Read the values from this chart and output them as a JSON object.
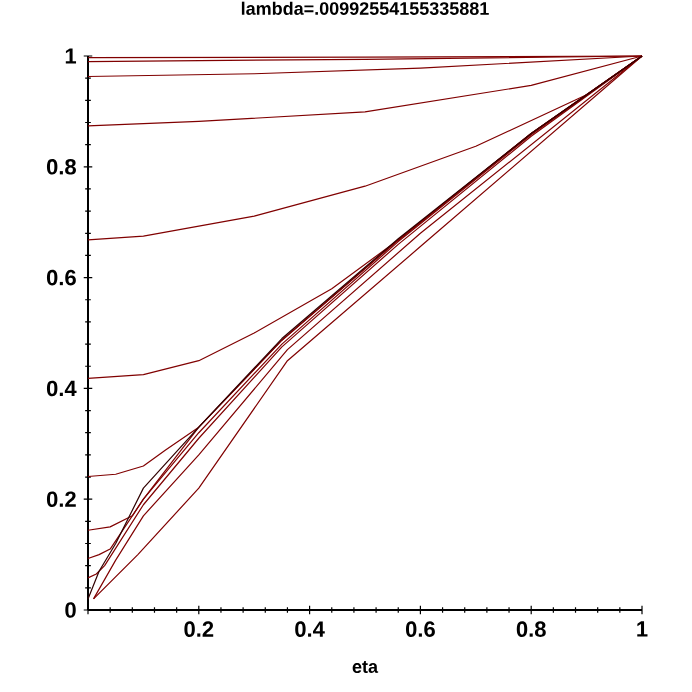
{
  "chart_data": {
    "type": "line",
    "title": "lambda=.00992554155335881",
    "xlabel": "eta",
    "xlim": [
      0,
      1
    ],
    "ylim": [
      0,
      1
    ],
    "xticks": [
      {
        "value": 0,
        "label": null
      },
      0.2,
      0.4,
      0.6,
      0.8,
      1
    ],
    "yticks": [
      0,
      0.2,
      0.4,
      0.6,
      0.8,
      1
    ],
    "series": [
      {
        "color": "#800000",
        "x": [
          0,
          0.5,
          1
        ],
        "values": [
          0.997,
          0.998,
          1
        ]
      },
      {
        "color": "#800000",
        "x": [
          0,
          0.5,
          1
        ],
        "values": [
          0.99,
          0.994,
          1
        ]
      },
      {
        "color": "#800000",
        "x": [
          0,
          0.3,
          0.6,
          1
        ],
        "values": [
          0.963,
          0.968,
          0.978,
          1
        ]
      },
      {
        "color": "#800000",
        "x": [
          0,
          0.2,
          0.5,
          0.8,
          1
        ],
        "values": [
          0.874,
          0.882,
          0.899,
          0.947,
          1
        ]
      },
      {
        "color": "#800000",
        "x": [
          0,
          0.1,
          0.3,
          0.5,
          0.7,
          0.9,
          1
        ],
        "values": [
          0.668,
          0.675,
          0.711,
          0.765,
          0.837,
          0.93,
          1
        ]
      },
      {
        "color": "#800000",
        "x": [
          0,
          0.1,
          0.2,
          0.3,
          0.44,
          0.56,
          0.8,
          1
        ],
        "values": [
          0.418,
          0.425,
          0.45,
          0.5,
          0.58,
          0.668,
          0.86,
          1
        ]
      },
      {
        "color": "#800000",
        "x": [
          0,
          0.05,
          0.1,
          0.14,
          0.2,
          0.35,
          0.56,
          0.8,
          1
        ],
        "values": [
          0.241,
          0.245,
          0.26,
          0.289,
          0.33,
          0.487,
          0.668,
          0.86,
          1
        ]
      },
      {
        "color": "#800000",
        "x": [
          0,
          0.04,
          0.08,
          0.1,
          0.2,
          0.35,
          0.56,
          0.8,
          1
        ],
        "values": [
          0.144,
          0.15,
          0.17,
          0.2,
          0.33,
          0.487,
          0.668,
          0.86,
          1
        ]
      },
      {
        "color": "#800000",
        "x": [
          0,
          0.02,
          0.04,
          0.1,
          0.2,
          0.35,
          0.56,
          0.8,
          1
        ],
        "values": [
          0.093,
          0.1,
          0.11,
          0.2,
          0.32,
          0.48,
          0.665,
          0.858,
          1
        ]
      },
      {
        "color": "#800000",
        "x": [
          0,
          0.015,
          0.03,
          0.1,
          0.2,
          0.35,
          0.56,
          0.8,
          1
        ],
        "values": [
          0.058,
          0.065,
          0.08,
          0.19,
          0.31,
          0.475,
          0.66,
          0.855,
          1
        ]
      },
      {
        "color": "#800000",
        "x": [
          0.01,
          0.05,
          0.1,
          0.2,
          0.36,
          0.6,
          1
        ],
        "values": [
          0.02,
          0.09,
          0.17,
          0.28,
          0.47,
          0.68,
          1
        ]
      },
      {
        "color": "#800000",
        "x": [
          0.01,
          0.05,
          0.09,
          0.2,
          0.36,
          0.6,
          1
        ],
        "values": [
          0.02,
          0.06,
          0.1,
          0.22,
          0.45,
          0.656,
          1
        ]
      },
      {
        "color": "#300000",
        "x": [
          0,
          0.02,
          0.05,
          0.1,
          0.2,
          0.35,
          0.56,
          0.8,
          1
        ],
        "values": [
          0.02,
          0.07,
          0.12,
          0.22,
          0.33,
          0.49,
          0.67,
          0.86,
          1
        ]
      }
    ]
  }
}
